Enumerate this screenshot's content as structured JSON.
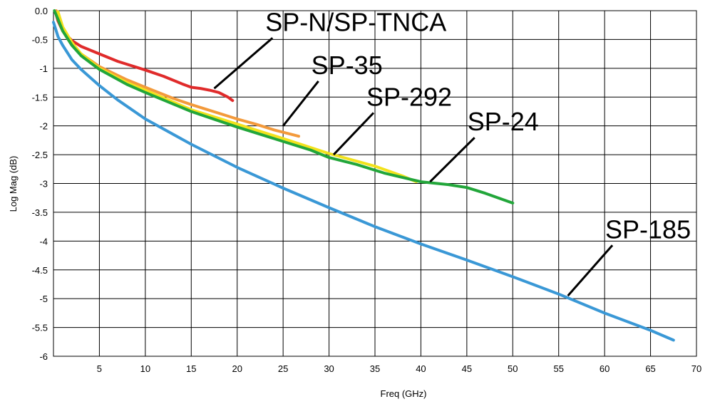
{
  "chart_data": {
    "type": "line",
    "title": "",
    "xlabel": "Freq (GHz)",
    "ylabel": "Log Mag (dB)",
    "xlim": [
      0,
      70
    ],
    "ylim": [
      -6,
      0
    ],
    "x_ticks": [
      5,
      10,
      15,
      20,
      25,
      30,
      35,
      40,
      45,
      50,
      55,
      60,
      65,
      70
    ],
    "y_ticks": [
      0,
      -0.5,
      -1,
      -1.5,
      -2,
      -2.5,
      -3,
      -3.5,
      -4,
      -4.5,
      -5,
      -5.5,
      -6
    ],
    "y_tick_labels": [
      "0.0",
      "-0.5",
      "-1",
      "-1.5",
      "-2",
      "-2.5",
      "-3",
      "-3.5",
      "-4",
      "-4.5",
      "-5",
      "-5.5",
      "-6"
    ],
    "grid": true,
    "series": [
      {
        "name": "SP-N/SP-TNCA",
        "color": "#e02b2b",
        "x": [
          0.2,
          0.5,
          1,
          2,
          3,
          5,
          7,
          10,
          12,
          14,
          15,
          16,
          17,
          18,
          19,
          19.5
        ],
        "y": [
          -0.02,
          -0.18,
          -0.35,
          -0.52,
          -0.62,
          -0.75,
          -0.88,
          -1.03,
          -1.14,
          -1.27,
          -1.33,
          -1.35,
          -1.38,
          -1.42,
          -1.5,
          -1.56
        ]
      },
      {
        "name": "SP-35",
        "color": "#f39a3b",
        "x": [
          0.3,
          1,
          2,
          3,
          5,
          8,
          10,
          13,
          15,
          18,
          20,
          22,
          24,
          26.7
        ],
        "y": [
          0,
          -0.35,
          -0.6,
          -0.75,
          -0.97,
          -1.2,
          -1.33,
          -1.52,
          -1.63,
          -1.78,
          -1.88,
          -1.97,
          -2.07,
          -2.18
        ]
      },
      {
        "name": "SP-292",
        "color": "#f2e21c",
        "x": [
          0.5,
          1,
          2,
          3,
          5,
          8,
          10,
          15,
          20,
          25,
          30,
          35,
          38,
          39.5
        ],
        "y": [
          -0.02,
          -0.28,
          -0.55,
          -0.75,
          -1.0,
          -1.25,
          -1.38,
          -1.72,
          -1.97,
          -2.22,
          -2.48,
          -2.7,
          -2.87,
          -2.97
        ]
      },
      {
        "name": "SP-24",
        "color": "#22a63a",
        "x": [
          0.1,
          0.5,
          1,
          2,
          3,
          5,
          8,
          10,
          15,
          20,
          25,
          28,
          30,
          33,
          36,
          40,
          43,
          45,
          47,
          50
        ],
        "y": [
          0,
          -0.15,
          -0.35,
          -0.6,
          -0.78,
          -1.02,
          -1.28,
          -1.42,
          -1.75,
          -2.02,
          -2.27,
          -2.42,
          -2.55,
          -2.67,
          -2.82,
          -2.97,
          -3.02,
          -3.07,
          -3.17,
          -3.34
        ]
      },
      {
        "name": "SP-185",
        "color": "#3a98d6",
        "x": [
          0,
          0.5,
          1,
          2,
          3,
          5,
          7,
          10,
          15,
          20,
          25,
          30,
          35,
          40,
          45,
          50,
          55,
          60,
          65,
          67.5
        ],
        "y": [
          -0.2,
          -0.45,
          -0.6,
          -0.85,
          -1.02,
          -1.3,
          -1.55,
          -1.88,
          -2.32,
          -2.72,
          -3.08,
          -3.42,
          -3.75,
          -4.05,
          -4.33,
          -4.62,
          -4.92,
          -5.25,
          -5.55,
          -5.72
        ]
      }
    ],
    "annotations": [
      {
        "text": "SP-N/SP-TNCA",
        "series": "SP-N/SP-TNCA",
        "point": [
          17.5,
          -1.35
        ],
        "label_at": [
          24,
          -0.35
        ]
      },
      {
        "text": "SP-35",
        "series": "SP-35",
        "point": [
          25,
          -2.0
        ],
        "label_at": [
          29,
          -1.1
        ]
      },
      {
        "text": "SP-292",
        "series": "SP-292",
        "point": [
          30.5,
          -2.5
        ],
        "label_at": [
          35,
          -1.65
        ]
      },
      {
        "text": "SP-24",
        "series": "SP-24",
        "point": [
          41,
          -2.97
        ],
        "label_at": [
          46,
          -2.08
        ]
      },
      {
        "text": "SP-185",
        "series": "SP-185",
        "point": [
          56,
          -4.95
        ],
        "label_at": [
          61,
          -3.95
        ]
      }
    ]
  }
}
